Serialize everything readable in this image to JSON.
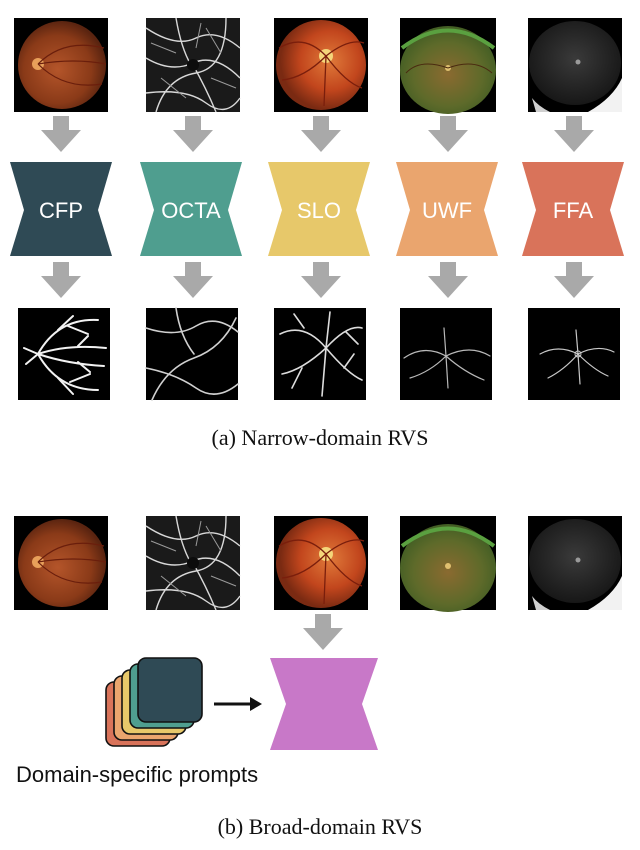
{
  "panel_a": {
    "caption": "(a) Narrow-domain RVS",
    "models": [
      {
        "label": "CFP",
        "color": "#2f4a55"
      },
      {
        "label": "OCTA",
        "color": "#4f9e8f"
      },
      {
        "label": "SLO",
        "color": "#e7c86a"
      },
      {
        "label": "UWF",
        "color": "#eaa56e"
      },
      {
        "label": "FFA",
        "color": "#d9735a"
      }
    ]
  },
  "panel_b": {
    "caption": "(b) Broad-domain RVS",
    "prompts_label": "Domain-specific prompts",
    "model_color": "#c878c8",
    "prompt_card_colors": [
      "#d9735a",
      "#eaa56e",
      "#e7c86a",
      "#4f9e8f",
      "#2f4a55"
    ]
  },
  "colors": {
    "arrow": "#a9a9a9",
    "image_bg": "#000000"
  },
  "icons": {
    "down_arrow": "down-arrow-icon",
    "right_arrow": "right-arrow-icon"
  }
}
